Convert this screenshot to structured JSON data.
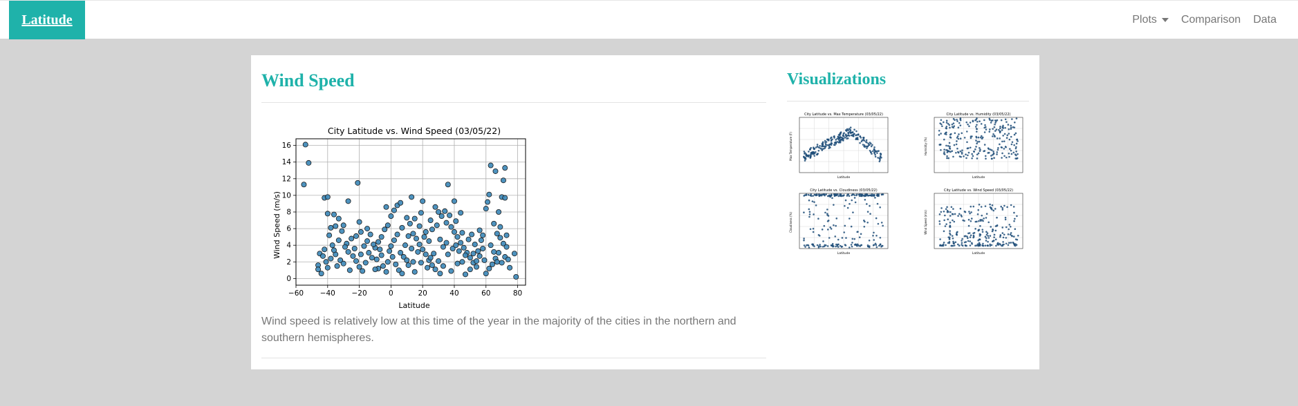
{
  "navbar": {
    "brand": "Latitude",
    "links": [
      {
        "label": "Plots",
        "dropdown": true
      },
      {
        "label": "Comparison"
      },
      {
        "label": "Data"
      }
    ]
  },
  "main": {
    "title": "Wind Speed",
    "description": "Wind speed is relatively low at this time of the year in the majority of the cities in the northern and southern hemispheres."
  },
  "sidebar": {
    "title": "Visualizations",
    "thumbnails": [
      {
        "title": "City Latitude vs. Max Temperature (03/05/22)",
        "ylabel": "Max Temperature (F)",
        "xlabel": "Latitude"
      },
      {
        "title": "City Latitude vs. Humidity (03/05/22)",
        "ylabel": "Humidity (%)",
        "xlabel": "Latitude"
      },
      {
        "title": "City Latitude vs. Cloudiness (03/05/22)",
        "ylabel": "Cloudiness (%)",
        "xlabel": "Latitude"
      },
      {
        "title": "City Latitude vs. Wind Speed (03/05/22)",
        "ylabel": "Wind Speed (m/s)",
        "xlabel": "Latitude"
      }
    ]
  },
  "colors": {
    "accent": "#1fb2aa",
    "point": "#3b87b8",
    "point_edge": "#1a1a1a"
  },
  "chart_data": {
    "type": "scatter",
    "title": "City Latitude vs. Wind Speed (03/05/22)",
    "xlabel": "Latitude",
    "ylabel": "Wind Speed (m/s)",
    "xlim": [
      -60,
      85
    ],
    "ylim": [
      -0.8,
      16.8
    ],
    "xticks": [
      -60,
      -40,
      -20,
      0,
      20,
      40,
      60,
      80
    ],
    "yticks": [
      0,
      2,
      4,
      6,
      8,
      10,
      12,
      14,
      16
    ],
    "grid": true,
    "points": [
      [
        -54,
        16.1
      ],
      [
        -52,
        13.9
      ],
      [
        -55,
        11.3
      ],
      [
        -42,
        9.7
      ],
      [
        -40,
        9.8
      ],
      [
        -21,
        11.5
      ],
      [
        -40,
        7.8
      ],
      [
        -36,
        7.7
      ],
      [
        -33,
        7.2
      ],
      [
        -30,
        6.4
      ],
      [
        -35,
        6.3
      ],
      [
        -38,
        6.1
      ],
      [
        -27,
        9.3
      ],
      [
        -20,
        6.8
      ],
      [
        -19,
        5.6
      ],
      [
        -22,
        5.1
      ],
      [
        -25,
        4.8
      ],
      [
        -28,
        4.2
      ],
      [
        -33,
        4.6
      ],
      [
        -37,
        4.0
      ],
      [
        -42,
        3.5
      ],
      [
        -45,
        3.0
      ],
      [
        -46,
        1.6
      ],
      [
        -46,
        1.1
      ],
      [
        -44,
        0.6
      ],
      [
        -40,
        1.3
      ],
      [
        -38,
        2.4
      ],
      [
        -35,
        2.9
      ],
      [
        -32,
        2.2
      ],
      [
        -30,
        1.8
      ],
      [
        -27,
        3.2
      ],
      [
        -24,
        2.7
      ],
      [
        -22,
        2.1
      ],
      [
        -20,
        1.4
      ],
      [
        -18,
        0.9
      ],
      [
        -16,
        1.9
      ],
      [
        -14,
        3.1
      ],
      [
        -12,
        2.5
      ],
      [
        -10,
        3.7
      ],
      [
        -8,
        4.4
      ],
      [
        -6,
        5.0
      ],
      [
        -4,
        5.9
      ],
      [
        -2,
        6.4
      ],
      [
        0,
        7.5
      ],
      [
        2,
        8.2
      ],
      [
        4,
        8.8
      ],
      [
        -1,
        3.3
      ],
      [
        1,
        2.6
      ],
      [
        3,
        1.7
      ],
      [
        5,
        1.0
      ],
      [
        7,
        0.6
      ],
      [
        -3,
        0.8
      ],
      [
        -5,
        1.5
      ],
      [
        -9,
        2.3
      ],
      [
        -11,
        4.1
      ],
      [
        -13,
        5.3
      ],
      [
        -15,
        6.0
      ],
      [
        -17,
        3.9
      ],
      [
        -3,
        8.6
      ],
      [
        6,
        9.1
      ],
      [
        10,
        7.3
      ],
      [
        12,
        6.6
      ],
      [
        14,
        5.4
      ],
      [
        16,
        4.8
      ],
      [
        18,
        4.1
      ],
      [
        20,
        3.5
      ],
      [
        22,
        2.9
      ],
      [
        24,
        2.2
      ],
      [
        26,
        1.6
      ],
      [
        28,
        1.1
      ],
      [
        13,
        9.8
      ],
      [
        20,
        9.3
      ],
      [
        30,
        8.0
      ],
      [
        32,
        7.5
      ],
      [
        35,
        6.7
      ],
      [
        38,
        6.2
      ],
      [
        40,
        5.6
      ],
      [
        42,
        5.0
      ],
      [
        44,
        4.3
      ],
      [
        46,
        3.7
      ],
      [
        48,
        3.1
      ],
      [
        50,
        2.5
      ],
      [
        52,
        1.9
      ],
      [
        54,
        1.4
      ],
      [
        36,
        11.3
      ],
      [
        40,
        9.3
      ],
      [
        44,
        7.9
      ],
      [
        33,
        3.8
      ],
      [
        36,
        2.9
      ],
      [
        30,
        2.1
      ],
      [
        27,
        3.0
      ],
      [
        24,
        4.5
      ],
      [
        22,
        5.6
      ],
      [
        18,
        6.3
      ],
      [
        15,
        7.2
      ],
      [
        11,
        5.1
      ],
      [
        9,
        4.0
      ],
      [
        8,
        2.6
      ],
      [
        11,
        1.6
      ],
      [
        15,
        0.8
      ],
      [
        19,
        1.9
      ],
      [
        23,
        1.3
      ],
      [
        31,
        0.6
      ],
      [
        38,
        0.9
      ],
      [
        42,
        1.8
      ],
      [
        47,
        0.5
      ],
      [
        50,
        1.1
      ],
      [
        55,
        3.3
      ],
      [
        57,
        4.6
      ],
      [
        58,
        5.2
      ],
      [
        60,
        8.4
      ],
      [
        61,
        9.2
      ],
      [
        62,
        10.1
      ],
      [
        63,
        13.6
      ],
      [
        66,
        12.9
      ],
      [
        70,
        9.8
      ],
      [
        72,
        9.7
      ],
      [
        71,
        11.8
      ],
      [
        72,
        13.3
      ],
      [
        68,
        8.0
      ],
      [
        65,
        6.6
      ],
      [
        67,
        5.4
      ],
      [
        69,
        4.9
      ],
      [
        71,
        4.2
      ],
      [
        73,
        3.8
      ],
      [
        68,
        3.1
      ],
      [
        66,
        2.4
      ],
      [
        64,
        1.7
      ],
      [
        62,
        1.2
      ],
      [
        60,
        0.6
      ],
      [
        70,
        1.9
      ],
      [
        72,
        2.6
      ],
      [
        74,
        2.3
      ],
      [
        75,
        1.3
      ],
      [
        78,
        3.0
      ],
      [
        79,
        0.2
      ],
      [
        58,
        3.6
      ],
      [
        56,
        2.7
      ],
      [
        53,
        4.1
      ],
      [
        51,
        5.3
      ],
      [
        49,
        4.7
      ],
      [
        45,
        5.5
      ],
      [
        41,
        6.9
      ],
      [
        37,
        7.6
      ],
      [
        34,
        8.1
      ],
      [
        29,
        6.4
      ],
      [
        26,
        5.9
      ],
      [
        21,
        5.0
      ],
      [
        17,
        3.2
      ],
      [
        13,
        3.6
      ],
      [
        7,
        6.1
      ],
      [
        4,
        5.3
      ],
      [
        2,
        4.6
      ],
      [
        0,
        3.9
      ],
      [
        -2,
        2.0
      ],
      [
        -6,
        2.8
      ],
      [
        -8,
        1.2
      ],
      [
        -23,
        3.6
      ],
      [
        -26,
        1.0
      ],
      [
        -29,
        3.8
      ],
      [
        -31,
        5.7
      ],
      [
        -34,
        1.5
      ],
      [
        -36,
        3.4
      ],
      [
        -39,
        5.2
      ],
      [
        -41,
        2.0
      ],
      [
        -43,
        2.7
      ],
      [
        45,
        2.0
      ],
      [
        52,
        3.0
      ],
      [
        56,
        5.8
      ],
      [
        59,
        2.2
      ],
      [
        63,
        4.0
      ],
      [
        65,
        3.2
      ],
      [
        67,
        2.0
      ],
      [
        69,
        6.2
      ],
      [
        73,
        5.2
      ],
      [
        19,
        7.9
      ],
      [
        25,
        7.0
      ],
      [
        28,
        8.6
      ],
      [
        31,
        4.7
      ],
      [
        35,
        4.3
      ],
      [
        39,
        3.6
      ],
      [
        43,
        3.3
      ],
      [
        47,
        2.8
      ],
      [
        -19,
        2.9
      ],
      [
        -15,
        4.5
      ],
      [
        -10,
        1.1
      ],
      [
        -7,
        3.5
      ],
      [
        6,
        3.1
      ],
      [
        10,
        2.2
      ],
      [
        14,
        2.0
      ],
      [
        25,
        2.5
      ],
      [
        33,
        1.5
      ],
      [
        41,
        4.0
      ],
      [
        54,
        2.1
      ]
    ]
  }
}
